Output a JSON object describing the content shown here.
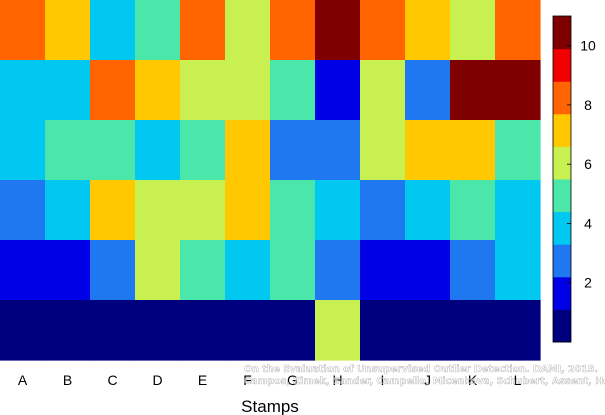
{
  "chart_data": {
    "type": "heatmap",
    "title": "",
    "xlabel": "Stamps",
    "ylabel": "",
    "x_categories": [
      "A",
      "B",
      "C",
      "D",
      "E",
      "F",
      "G",
      "H",
      "I",
      "J",
      "K",
      "L"
    ],
    "rows": 6,
    "values": [
      [
        8,
        7,
        4,
        5,
        8,
        6,
        8,
        10,
        8,
        7,
        6,
        8
      ],
      [
        4,
        4,
        8,
        7,
        6,
        6,
        5,
        2,
        6,
        3,
        10,
        10
      ],
      [
        4,
        5,
        5,
        4,
        5,
        7,
        3,
        3,
        6,
        7,
        7,
        5
      ],
      [
        3,
        4,
        7,
        6,
        6,
        7,
        5,
        4,
        3,
        4,
        5,
        4
      ],
      [
        2,
        2,
        3,
        6,
        5,
        4,
        5,
        3,
        2,
        2,
        3,
        4
      ],
      [
        1,
        1,
        1,
        1,
        1,
        1,
        1,
        6,
        1,
        1,
        1,
        1
      ]
    ],
    "colorbar": {
      "range": [
        0,
        11
      ],
      "ticks": [
        "2",
        "4",
        "6",
        "8",
        "10"
      ],
      "tick_values": [
        2,
        4,
        6,
        8,
        10
      ],
      "colors": [
        "#00007f",
        "#0000e6",
        "#1f78f0",
        "#00c8f0",
        "#4be6aa",
        "#c8f050",
        "#ffc800",
        "#ff6400",
        "#f00000",
        "#7f0000"
      ]
    },
    "grid": false,
    "watermark": [
      "On the Evaluation of Unsupervised Outlier Detection. DAMI, 2015.",
      "Campos, Zimek, Sander, Campello, Micenkova, Schubert, Assent, Houle"
    ]
  }
}
